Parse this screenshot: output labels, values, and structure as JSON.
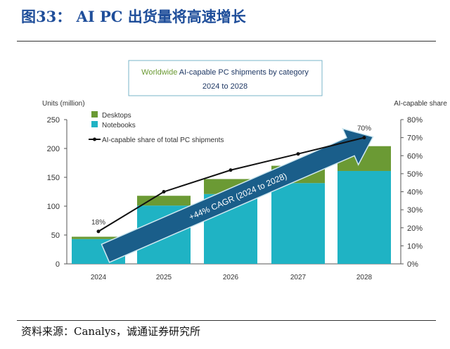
{
  "header": {
    "title": "图33：  AI PC 出货量将高速增长"
  },
  "footer": {
    "source": "资料来源：Canalys，诚通证券研究所"
  },
  "chart_data": {
    "type": "bar",
    "title_part1": "Worldwide",
    "title_part2": "AI-capable PC shipments by category",
    "subtitle": "2024 to 2028",
    "ylabel": "Units (million)",
    "y2label": "AI-capable share",
    "categories": [
      "2024",
      "2025",
      "2026",
      "2027",
      "2028"
    ],
    "ylim": [
      0,
      250
    ],
    "yticks": [
      "0",
      "50",
      "100",
      "150",
      "200",
      "250"
    ],
    "y2lim": [
      0,
      80
    ],
    "y2ticks": [
      "0%",
      "10%",
      "20%",
      "30%",
      "40%",
      "50%",
      "60%",
      "70%",
      "80%"
    ],
    "series": [
      {
        "name": "Notebooks",
        "values": [
          43,
          101,
          121,
          140,
          161
        ],
        "color": "#1fb3c4"
      },
      {
        "name": "Desktops",
        "values": [
          4,
          17,
          26,
          30,
          43
        ],
        "color": "#6b9a34"
      }
    ],
    "line": {
      "name": "AI-capable share of total PC shipments",
      "values": [
        18,
        40,
        52,
        61,
        70
      ],
      "labels": [
        "18%",
        "",
        "",
        "",
        "70%"
      ],
      "axis": "right"
    },
    "annotation": "+44% CAGR (2024 to 2028)",
    "legend_placement": "top-left",
    "grid": false
  }
}
